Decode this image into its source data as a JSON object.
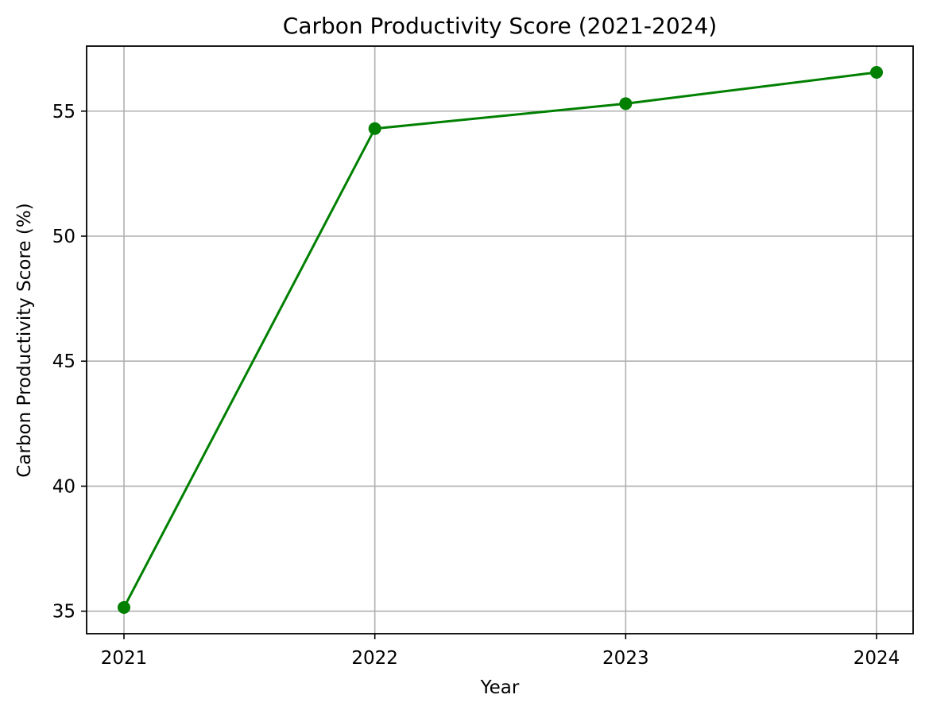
{
  "chart_data": {
    "type": "line",
    "title": "Carbon Productivity Score (2021-2024)",
    "xlabel": "Year",
    "ylabel": "Carbon Productivity Score (%)",
    "categories": [
      "2021",
      "2022",
      "2023",
      "2024"
    ],
    "series": [
      {
        "values": [
          35.15,
          54.3,
          55.3,
          56.55
        ],
        "color": "#008000",
        "marker": "circle"
      }
    ],
    "yticks": [
      35,
      40,
      45,
      50,
      55
    ],
    "ylim": [
      34.1,
      57.6
    ],
    "grid": true,
    "legend": "none"
  }
}
